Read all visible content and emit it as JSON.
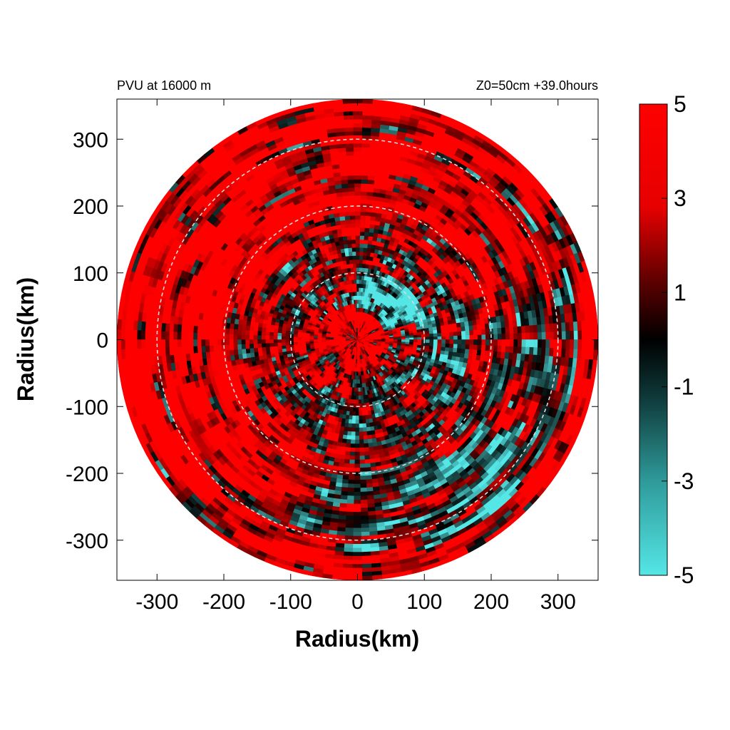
{
  "chart_data": {
    "type": "heatmap",
    "title": "PVU at 16000 m",
    "subtitle": "Z0=50cm  +39.0hours",
    "xlabel": "Radius(km)",
    "ylabel": "Radius(km)",
    "xlim": [
      -360,
      360
    ],
    "ylim": [
      -360,
      360
    ],
    "x_ticks": [
      -300,
      -200,
      -100,
      0,
      100,
      200,
      300
    ],
    "y_ticks": [
      300,
      200,
      100,
      0,
      -100,
      -200,
      -300
    ],
    "domain_radius_km": 360,
    "reference_circles_km": [
      100,
      200,
      300
    ],
    "colorbar": {
      "min": -5,
      "max": 5,
      "ticks": [
        5,
        3,
        1,
        -1,
        -3,
        -5
      ],
      "colors": {
        "high": "#ff0000",
        "mid": "#000000",
        "low": "#55e6e6"
      }
    },
    "grid": false
  }
}
